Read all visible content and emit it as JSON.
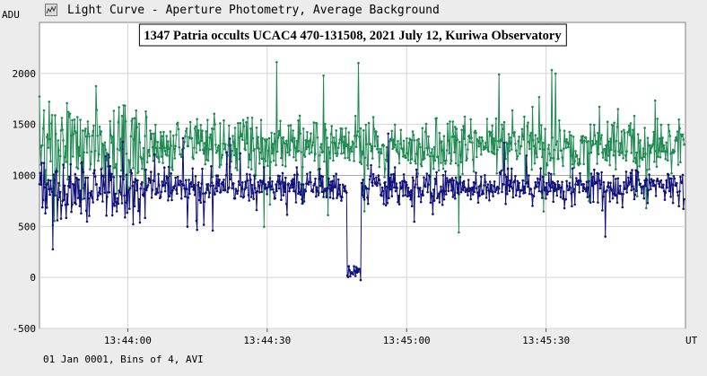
{
  "window": {
    "title": "Light Curve - Aperture Photometry, Average Background",
    "icon": "light-curve-chart-icon"
  },
  "footer": {
    "text": "01 Jan 0001, Bins of 4, AVI"
  },
  "chart_data": {
    "type": "line",
    "title": "1347 Patria occults UCAC4 470-131508, 2021 July 12, Kuriwa Observatory",
    "ylabel": "ADU",
    "xlabel": "UT",
    "ylim": [
      -500,
      2500
    ],
    "yticks": [
      -500,
      0,
      500,
      1000,
      1500,
      2000
    ],
    "ytick_labels": [
      "-500",
      "0",
      "500",
      "1000",
      "1500",
      "2000"
    ],
    "xlim": [
      "13:43:41",
      "13:46:00"
    ],
    "xticks": [
      "13:44:00",
      "13:44:30",
      "13:45:00",
      "13:45:30"
    ],
    "grid": true,
    "legend": "none",
    "colors": {
      "comparison": "#1e8a52",
      "target": "#10107a",
      "reference_line": "#aaaaaa",
      "plot_background": "#ffffff",
      "page_background": "#ececec"
    },
    "reference_level": 1000,
    "bin_seconds": 0.16,
    "series": [
      {
        "role": "comparison",
        "name": "",
        "values": []
      },
      {
        "role": "target",
        "name": "",
        "values": []
      }
    ]
  }
}
